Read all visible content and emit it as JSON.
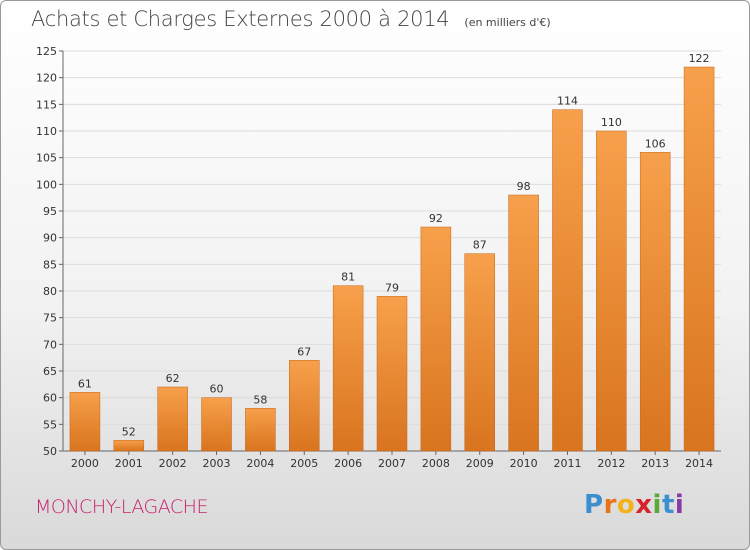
{
  "title": "Achats et Charges Externes 2000 à 2014",
  "unit": "(en milliers d'€)",
  "commune": "MONCHY-LAGACHE",
  "logo": {
    "letters": [
      "P",
      "r",
      "o",
      "x",
      "i",
      "t",
      "i"
    ],
    "colors": [
      "#3a8fd1",
      "#e8731a",
      "#f2b21a",
      "#d6222a",
      "#5aa83a",
      "#3a8fd1",
      "#8a3aa8"
    ]
  },
  "colors": {
    "bar_light": "#f7a04b",
    "bar_dark": "#d9741f",
    "bar_edge": "#c4661a",
    "title": "#444444",
    "commune": "#c81d6e"
  },
  "chart_data": {
    "type": "bar",
    "categories": [
      "2000",
      "2001",
      "2002",
      "2003",
      "2004",
      "2005",
      "2006",
      "2007",
      "2008",
      "2009",
      "2010",
      "2011",
      "2012",
      "2013",
      "2014"
    ],
    "values": [
      61,
      52,
      62,
      60,
      58,
      67,
      81,
      79,
      92,
      87,
      98,
      114,
      110,
      106,
      122
    ],
    "ylim": [
      50,
      125
    ],
    "yticks": [
      50,
      55,
      60,
      65,
      70,
      75,
      80,
      85,
      90,
      95,
      100,
      105,
      110,
      115,
      120,
      125
    ],
    "grid": true,
    "data_labels": true
  }
}
